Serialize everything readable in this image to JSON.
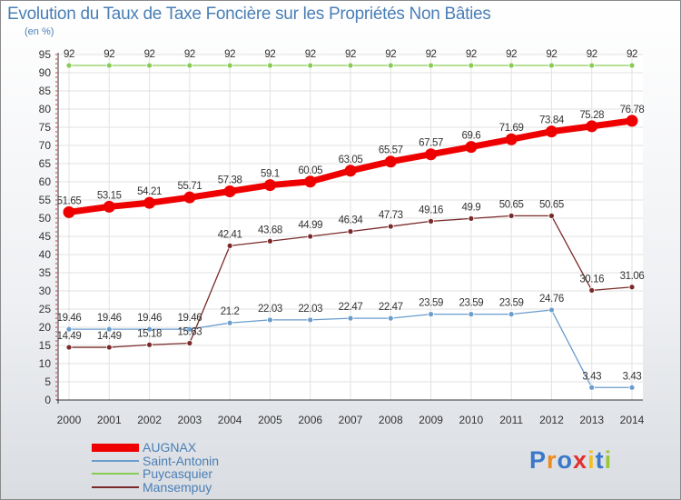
{
  "chart_data": {
    "type": "line",
    "title": "Evolution du Taux de Taxe Foncière sur les Propriétés Non Bâties",
    "ylabel": "(en %)",
    "xlabel": "",
    "categories": [
      "2000",
      "2001",
      "2002",
      "2003",
      "2004",
      "2005",
      "2006",
      "2007",
      "2008",
      "2009",
      "2010",
      "2011",
      "2012",
      "2013",
      "2014"
    ],
    "ylim": [
      0,
      95
    ],
    "yticks": [
      0,
      5,
      10,
      15,
      20,
      25,
      30,
      35,
      40,
      45,
      50,
      55,
      60,
      65,
      70,
      75,
      80,
      85,
      90,
      95
    ],
    "series": [
      {
        "name": "AUGNAX",
        "color": "#ee0000",
        "values": [
          51.65,
          53.15,
          54.21,
          55.71,
          57.38,
          59.1,
          60.05,
          63.05,
          65.57,
          67.57,
          69.6,
          71.69,
          73.84,
          75.28,
          76.78
        ],
        "labels": [
          "51.65",
          "53.15",
          "54.21",
          "55.71",
          "57.38",
          "59.1",
          "60.05",
          "63.05",
          "65.57",
          "67.57",
          "69.6",
          "71.69",
          "73.84",
          "75.28",
          "76.78"
        ]
      },
      {
        "name": "Saint-Antonin",
        "color": "#6a9ccc",
        "values": [
          19.46,
          19.46,
          19.46,
          19.46,
          21.2,
          22.03,
          22.03,
          22.47,
          22.47,
          23.59,
          23.59,
          23.59,
          24.76,
          3.43,
          3.43
        ],
        "labels": [
          "19.46",
          "19.46",
          "19.46",
          "19.46",
          "21.2",
          "22.03",
          "22.03",
          "22.47",
          "22.47",
          "23.59",
          "23.59",
          "23.59",
          "24.76",
          "3.43",
          "3.43"
        ]
      },
      {
        "name": "Puycasquier",
        "color": "#88cc55",
        "values": [
          92,
          92,
          92,
          92,
          92,
          92,
          92,
          92,
          92,
          92,
          92,
          92,
          92,
          92,
          92
        ],
        "labels": [
          "92",
          "92",
          "92",
          "92",
          "92",
          "92",
          "92",
          "92",
          "92",
          "92",
          "92",
          "92",
          "92",
          "92",
          "92"
        ]
      },
      {
        "name": "Mansempuy",
        "color": "#7a2a2a",
        "values": [
          14.49,
          14.49,
          15.18,
          15.63,
          42.41,
          43.68,
          44.99,
          46.34,
          47.73,
          49.16,
          49.9,
          50.65,
          50.65,
          30.16,
          31.06
        ],
        "labels": [
          "14.49",
          "14.49",
          "15.18",
          "15.63",
          "42.41",
          "43.68",
          "44.99",
          "46.34",
          "47.73",
          "49.16",
          "49.9",
          "50.65",
          "50.65",
          "30.16",
          "31.06"
        ]
      }
    ]
  },
  "logo": {
    "letters": [
      "P",
      "r",
      "o",
      "x",
      "i",
      "t",
      "i"
    ],
    "colors": [
      "#3a78c9",
      "#f08a1c",
      "#3a78c9",
      "#e03030",
      "#f0c020",
      "#3a78c9",
      "#9bc83a"
    ]
  }
}
